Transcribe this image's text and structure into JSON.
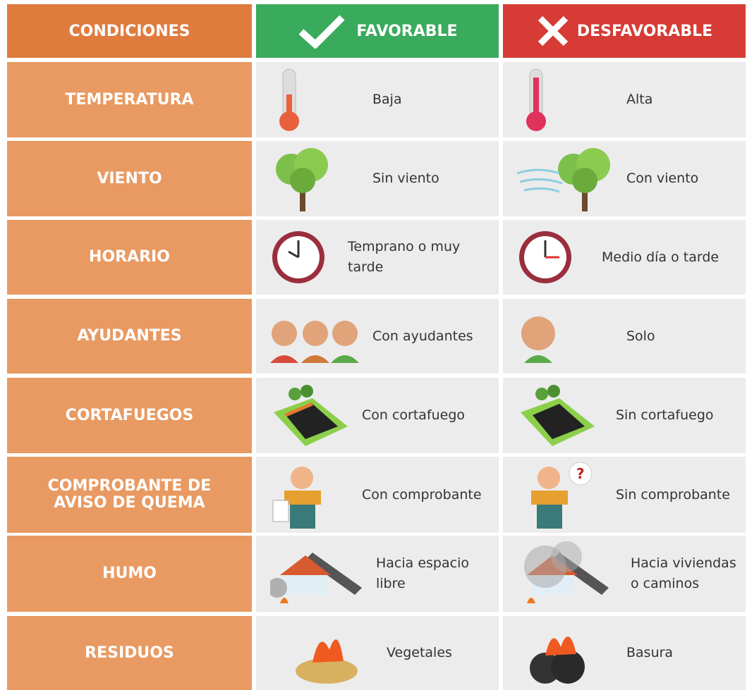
{
  "header": {
    "columns": [
      "CONDICIONES",
      "FAVORABLE",
      "DESFAVORABLE"
    ]
  },
  "rows": [
    {
      "label": "TEMPERATURA",
      "favorable": "Baja",
      "desfavorable": "Alta"
    },
    {
      "label": "VIENTO",
      "favorable": "Sin viento",
      "desfavorable": "Con viento"
    },
    {
      "label": "HORARIO",
      "favorable": "Temprano o muy tarde",
      "desfavorable": "Medio día o tarde"
    },
    {
      "label": "AYUDANTES",
      "favorable": "Con ayudantes",
      "desfavorable": "Solo"
    },
    {
      "label": "CORTAFUEGOS",
      "favorable": "Con cortafuego",
      "desfavorable": "Sin cortafuego"
    },
    {
      "label": "COMPROBANTE DE AVISO DE QUEMA",
      "favorable": "Con comprobante",
      "desfavorable": "Sin comprobante"
    },
    {
      "label": "HUMO",
      "favorable": "Hacia espacio libre",
      "desfavorable": "Hacia viviendas o caminos"
    },
    {
      "label": "RESIDUOS",
      "favorable": "Vegetales",
      "desfavorable": "Basura"
    }
  ]
}
